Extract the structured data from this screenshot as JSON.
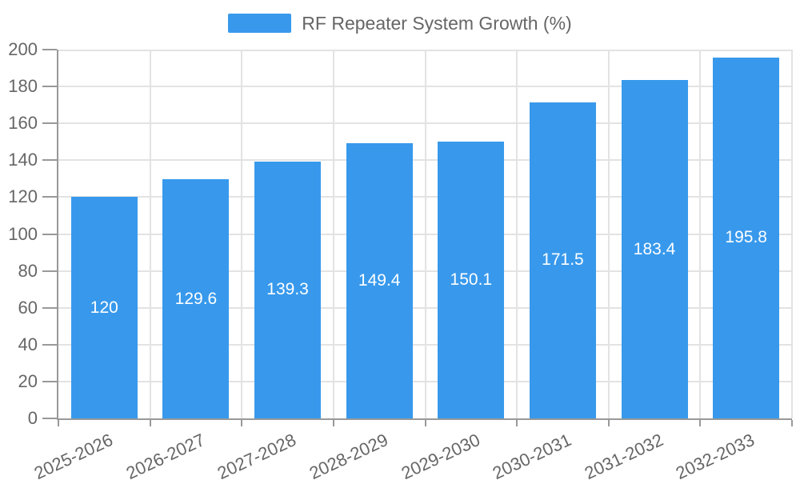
{
  "chart_data": {
    "type": "bar",
    "title": "RF Repeater System Growth (%)",
    "categories": [
      "2025-2026",
      "2026-2027",
      "2027-2028",
      "2028-2029",
      "2029-2030",
      "2030-2031",
      "2031-2032",
      "2032-2033"
    ],
    "values": [
      120,
      129.6,
      139.3,
      149.4,
      150.1,
      171.5,
      183.4,
      195.8
    ],
    "series_name": "RF Repeater System Growth (%)",
    "xlabel": "",
    "ylabel": "",
    "ylim": [
      0,
      200
    ],
    "ytick_step": 20,
    "grid": "on",
    "legend_position": "top-center",
    "value_labels": "inside-center",
    "colors": {
      "bar": "#3899EC",
      "grid": "#E3E3E3",
      "axis": "#999999",
      "tick_text": "#666666",
      "value_label_text": "#FFFFFF",
      "legend_text": "#666666",
      "background": "#FFFFFF"
    }
  }
}
